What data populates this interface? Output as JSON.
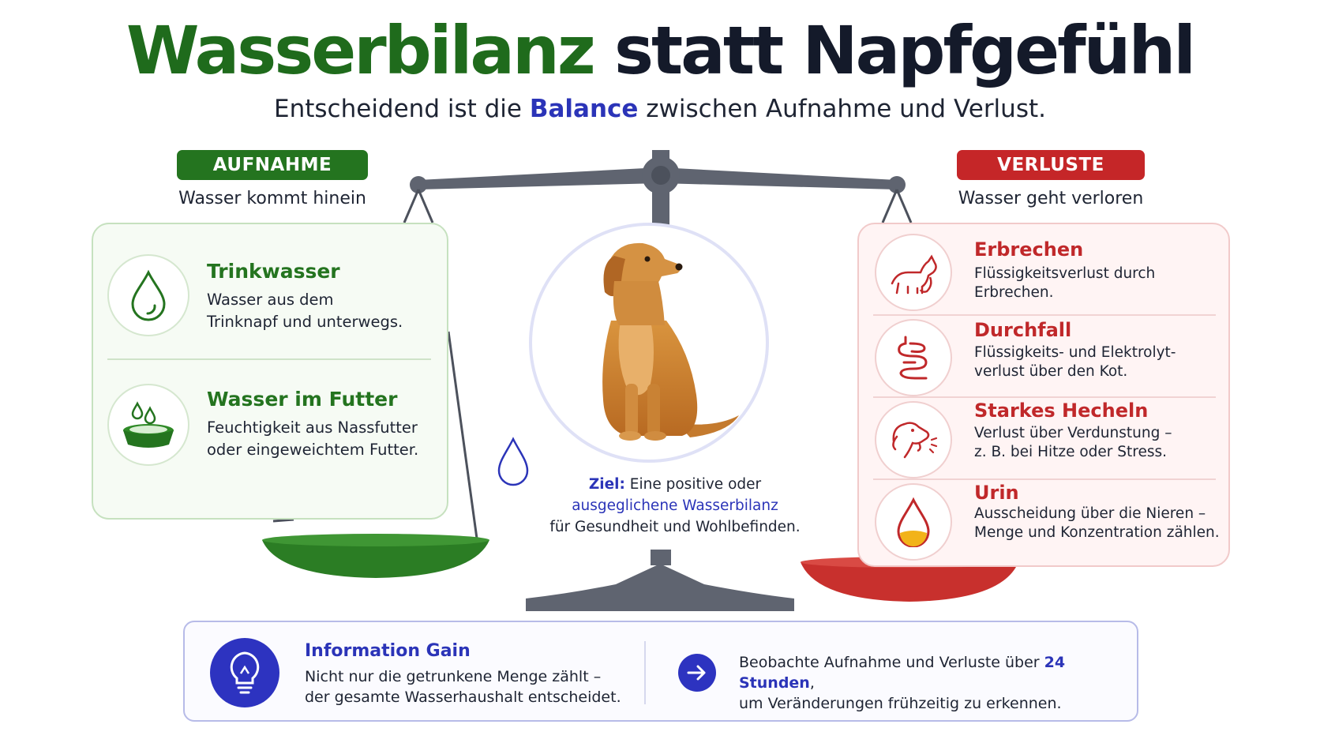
{
  "title": {
    "part1": "Wasserbilanz",
    "part2": "statt Napfgefühl"
  },
  "subtitle": {
    "before": "Entscheidend ist die ",
    "highlight": "Balance",
    "after": " zwischen Aufnahme und Verlust."
  },
  "intake": {
    "label": "AUFNAHME",
    "sublabel": "Wasser kommt hinein",
    "items": [
      {
        "title": "Trinkwasser",
        "line1": "Wasser aus dem",
        "line2": "Trinknapf und unterwegs.",
        "icon": "water-drop-icon"
      },
      {
        "title": "Wasser im Futter",
        "line1": "Feuchtigkeit aus Nassfutter",
        "line2": "oder eingeweichtem Futter.",
        "icon": "food-bowl-icon"
      }
    ]
  },
  "losses": {
    "label": "VERLUSTE",
    "sublabel": "Wasser geht verloren",
    "items": [
      {
        "title": "Erbrechen",
        "line1": "Flüssigkeitsverlust durch",
        "line2": "Erbrechen.",
        "icon": "vomiting-dog-icon"
      },
      {
        "title": "Durchfall",
        "line1": "Flüssigkeits- und Elektrolyt-",
        "line2": "verlust über den Kot.",
        "icon": "intestine-icon"
      },
      {
        "title": "Starkes Hecheln",
        "line1": "Verlust über Verdunstung –",
        "line2": "z. B. bei Hitze oder Stress.",
        "icon": "panting-dog-icon"
      },
      {
        "title": "Urin",
        "line1": "Ausscheidung über die Nieren –",
        "line2": "Menge und Konzentration zählen.",
        "icon": "urine-drop-icon"
      }
    ]
  },
  "goal": {
    "label": "Ziel:",
    "line1_rest": " Eine positive oder",
    "line2": "ausgeglichene Wasserbilanz",
    "line3": "für Gesundheit und Wohlbefinden."
  },
  "info": {
    "title": "Information Gain",
    "line1": "Nicht nur die getrunkene Menge zählt –",
    "line2": "der gesamte Wasserhaushalt entscheidet.",
    "right_before": "Beobachte Aufnahme und Verluste über ",
    "right_highlight": "24 Stunden",
    "right_after": ",",
    "right_line2": "um Veränderungen frühzeitig zu erkennen."
  },
  "colors": {
    "green": "#24741f",
    "red": "#c52628",
    "blue": "#2b34b8",
    "scale_gray": "#5f6470"
  }
}
